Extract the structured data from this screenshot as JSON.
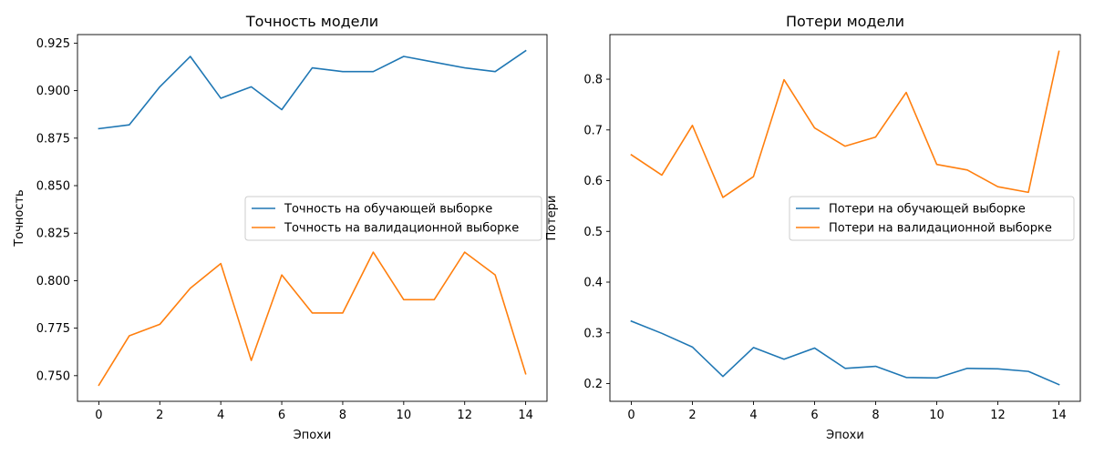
{
  "chart_data": [
    {
      "type": "line",
      "title": "Точность модели",
      "xlabel": "Эпохи",
      "ylabel": "Точность",
      "xlim": [
        -0.7,
        14.7
      ],
      "ylim": [
        0.7365,
        0.9295
      ],
      "xticks": [
        0,
        2,
        4,
        6,
        8,
        10,
        12,
        14
      ],
      "yticks": [
        0.75,
        0.775,
        0.8,
        0.825,
        0.85,
        0.875,
        0.9,
        0.925
      ],
      "ytick_labels": [
        "0.750",
        "0.775",
        "0.800",
        "0.825",
        "0.850",
        "0.875",
        "0.900",
        "0.925"
      ],
      "x": [
        0,
        1,
        2,
        3,
        4,
        5,
        6,
        7,
        8,
        9,
        10,
        11,
        12,
        13,
        14
      ],
      "legend_position": "center-right",
      "series": [
        {
          "name": "Точность на обучающей выборке",
          "color": "#1f77b4",
          "values": [
            0.88,
            0.882,
            0.902,
            0.918,
            0.896,
            0.902,
            0.89,
            0.912,
            0.91,
            0.91,
            0.918,
            0.915,
            0.912,
            0.91,
            0.921
          ]
        },
        {
          "name": "Точность на валидационной выборке",
          "color": "#ff7f0e",
          "values": [
            0.745,
            0.771,
            0.777,
            0.796,
            0.809,
            0.758,
            0.803,
            0.783,
            0.783,
            0.815,
            0.79,
            0.79,
            0.815,
            0.803,
            0.751
          ]
        }
      ]
    },
    {
      "type": "line",
      "title": "Потери модели",
      "xlabel": "Эпохи",
      "ylabel": "Потери",
      "xlim": [
        -0.7,
        14.7
      ],
      "ylim": [
        0.165,
        0.888
      ],
      "xticks": [
        0,
        2,
        4,
        6,
        8,
        10,
        12,
        14
      ],
      "yticks": [
        0.2,
        0.3,
        0.4,
        0.5,
        0.6,
        0.7,
        0.8
      ],
      "ytick_labels": [
        "0.2",
        "0.3",
        "0.4",
        "0.5",
        "0.6",
        "0.7",
        "0.8"
      ],
      "x": [
        0,
        1,
        2,
        3,
        4,
        5,
        6,
        7,
        8,
        9,
        10,
        11,
        12,
        13,
        14
      ],
      "legend_position": "center-right",
      "series": [
        {
          "name": "Потери на обучающей выборке",
          "color": "#1f77b4",
          "values": [
            0.323,
            0.299,
            0.272,
            0.214,
            0.271,
            0.248,
            0.27,
            0.23,
            0.234,
            0.212,
            0.211,
            0.23,
            0.229,
            0.224,
            0.198
          ]
        },
        {
          "name": "Потери на валидационной выборке",
          "color": "#ff7f0e",
          "values": [
            0.651,
            0.611,
            0.709,
            0.567,
            0.608,
            0.799,
            0.704,
            0.668,
            0.686,
            0.774,
            0.632,
            0.621,
            0.588,
            0.577,
            0.855
          ]
        }
      ]
    }
  ]
}
